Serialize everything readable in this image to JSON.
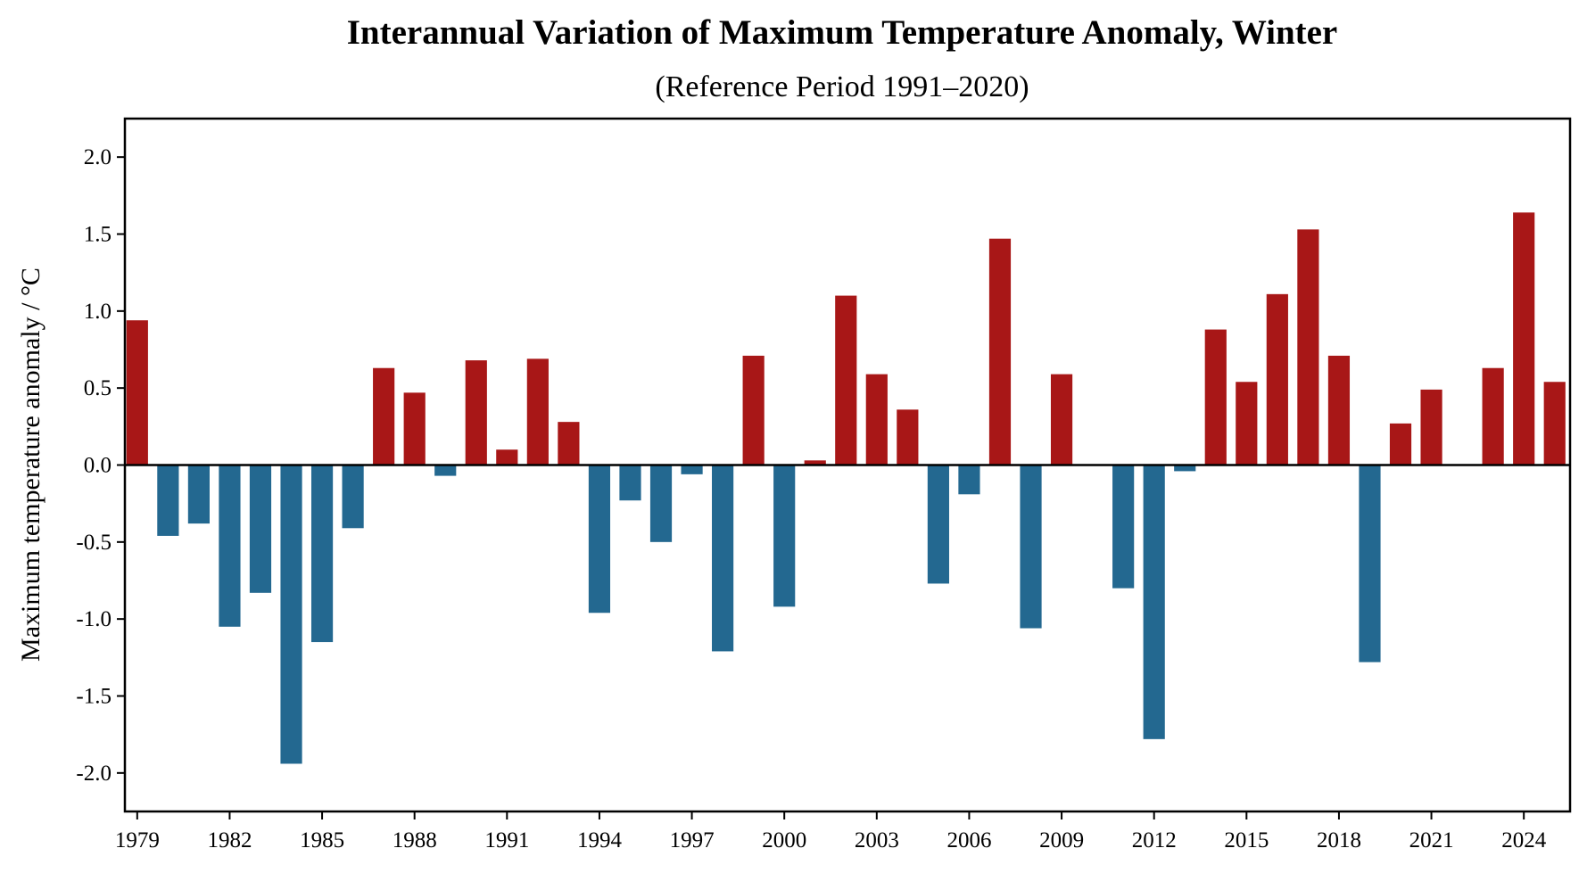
{
  "chart_data": {
    "type": "bar",
    "title": "Interannual Variation of Maximum Temperature Anomaly, Winter",
    "subtitle": "(Reference Period 1991–2020)",
    "xlabel": "",
    "ylabel": "Maximum temperature anomaly / °C",
    "ylim": [
      -2.25,
      2.25
    ],
    "xlim": [
      1978.6,
      2025.5
    ],
    "yticks": [
      -2.0,
      -1.5,
      -1.0,
      -0.5,
      0.0,
      0.5,
      1.0,
      1.5,
      2.0
    ],
    "ytick_labels": [
      "-2.0",
      "-1.5",
      "-1.0",
      "-0.5",
      "0.0",
      "0.5",
      "1.0",
      "1.5",
      "2.0"
    ],
    "xticks": [
      1979,
      1982,
      1985,
      1988,
      1991,
      1994,
      1997,
      2000,
      2003,
      2006,
      2009,
      2012,
      2015,
      2018,
      2021,
      2024
    ],
    "xtick_labels": [
      "1979",
      "1982",
      "1985",
      "1988",
      "1991",
      "1994",
      "1997",
      "2000",
      "2003",
      "2006",
      "2009",
      "2012",
      "2015",
      "2018",
      "2021",
      "2024"
    ],
    "grid": false,
    "legend": null,
    "zero_line": true,
    "colors": {
      "positive": "#a81717",
      "negative": "#236890",
      "axis": "#000000"
    },
    "categories": [
      1979,
      1980,
      1981,
      1982,
      1983,
      1984,
      1985,
      1986,
      1987,
      1988,
      1989,
      1990,
      1991,
      1992,
      1993,
      1994,
      1995,
      1996,
      1997,
      1998,
      1999,
      2000,
      2001,
      2002,
      2003,
      2004,
      2005,
      2006,
      2007,
      2008,
      2009,
      2010,
      2011,
      2012,
      2013,
      2014,
      2015,
      2016,
      2017,
      2018,
      2019,
      2020,
      2021,
      2022,
      2023,
      2024,
      2025
    ],
    "values": [
      0.94,
      -0.46,
      -0.38,
      -1.05,
      -0.83,
      -1.94,
      -1.15,
      -0.41,
      0.63,
      0.47,
      -0.07,
      0.68,
      0.1,
      0.69,
      0.28,
      -0.96,
      -0.23,
      -0.5,
      -0.06,
      -1.21,
      0.71,
      -0.92,
      0.03,
      1.1,
      0.59,
      0.36,
      -0.77,
      -0.19,
      1.47,
      -1.06,
      0.59,
      0.0,
      -0.8,
      -1.78,
      -0.04,
      0.88,
      0.54,
      1.11,
      1.53,
      0.71,
      -1.28,
      0.27,
      0.49,
      0.0,
      0.63,
      1.64,
      0.54
    ]
  }
}
